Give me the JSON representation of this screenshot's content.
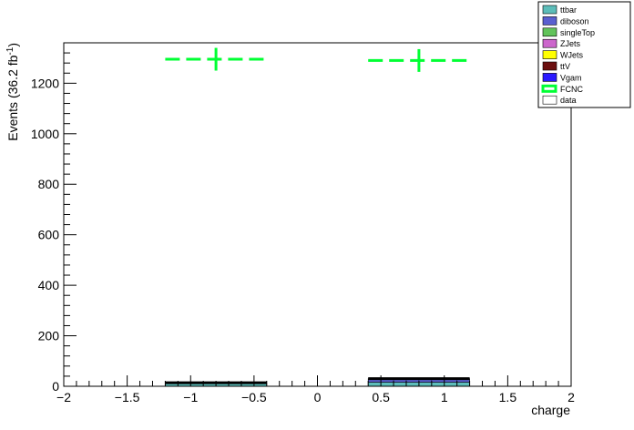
{
  "chart_data": {
    "type": "bar",
    "title": "",
    "xlabel": "charge",
    "ylabel": "Events (36.2 fb",
    "ylabel_sup": "-1",
    "ylabel_close": ")",
    "xlim": [
      -2,
      2
    ],
    "ylim": [
      0,
      1360
    ],
    "x_ticks": [
      -2,
      -1.5,
      -1,
      -0.5,
      0,
      0.5,
      1,
      1.5,
      2
    ],
    "x_tick_labels": [
      "−2",
      "−1.5",
      "−1",
      "−0.5",
      "0",
      "0.5",
      "1",
      "1.5",
      "2"
    ],
    "y_ticks": [
      0,
      200,
      400,
      600,
      800,
      1000,
      1200
    ],
    "y_tick_labels": [
      "0",
      "200",
      "400",
      "600",
      "800",
      "1000",
      "1200"
    ],
    "bins": [
      {
        "low": -1.2,
        "high": -0.4
      },
      {
        "low": 0.4,
        "high": 1.2
      }
    ],
    "stack": [
      {
        "name": "ttbar",
        "color": "#5cbdb9",
        "values": [
          14,
          16
        ]
      },
      {
        "name": "diboson",
        "color": "#5a5fd0",
        "values": [
          0,
          14
        ]
      },
      {
        "name": "singleTop",
        "color": "#61c35a",
        "values": [
          0,
          0
        ]
      },
      {
        "name": "ZJets",
        "color": "#cc66cc",
        "values": [
          0,
          0
        ]
      },
      {
        "name": "WJets",
        "color": "#ffff00",
        "values": [
          0,
          0
        ]
      },
      {
        "name": "ttV",
        "color": "#6b0f0f",
        "values": [
          0,
          0
        ]
      },
      {
        "name": "Vgam",
        "color": "#2a1aff",
        "values": [
          0,
          0
        ]
      }
    ],
    "signal": {
      "name": "FCNC",
      "color": "#00ff33",
      "values": [
        1295,
        1290
      ],
      "errors": [
        45,
        45
      ]
    },
    "data": {
      "name": "data",
      "color": "#ffffff",
      "values": [
        0,
        0
      ]
    },
    "legend": {
      "placement": "top-right",
      "entries": [
        {
          "label": "ttbar",
          "color": "#5cbdb9",
          "style": "fill"
        },
        {
          "label": "diboson",
          "color": "#5a5fd0",
          "style": "fill"
        },
        {
          "label": "singleTop",
          "color": "#61c35a",
          "style": "fill"
        },
        {
          "label": "ZJets",
          "color": "#cc66cc",
          "style": "fill"
        },
        {
          "label": "WJets",
          "color": "#ffff00",
          "style": "fill"
        },
        {
          "label": "ttV",
          "color": "#6b0f0f",
          "style": "fill"
        },
        {
          "label": "Vgam",
          "color": "#2a1aff",
          "style": "fill"
        },
        {
          "label": "FCNC",
          "color": "#00ff33",
          "style": "line"
        },
        {
          "label": "data",
          "color": "#ffffff",
          "style": "fill"
        }
      ]
    },
    "grid": false
  }
}
